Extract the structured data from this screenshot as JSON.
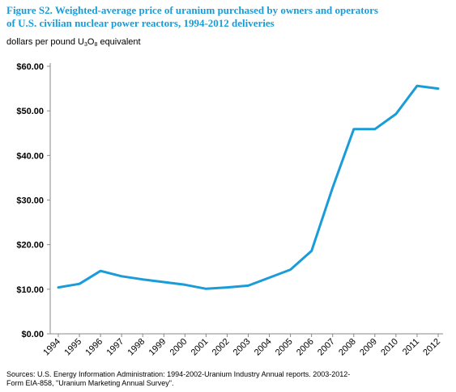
{
  "figure": {
    "title_line1": "Figure S2.  Weighted-average price of uranium purchased by owners and operators",
    "title_line2": "of U.S. civilian nuclear power reactors, 1994-2012 deliveries"
  },
  "colors": {
    "title": "#1a9cd8",
    "line": "#1a9cd8",
    "axis": "#888888"
  },
  "chart_data": {
    "type": "line",
    "ylabel_prefix": "dollars per pound U",
    "ylabel_sub1": "3",
    "ylabel_mid": "O",
    "ylabel_sub2": "8",
    "ylabel_suffix": " equivalent",
    "categories": [
      "1994",
      "1995",
      "1996",
      "1997",
      "1998",
      "1999",
      "2000",
      "2001",
      "2002",
      "2003",
      "2004",
      "2005",
      "2006",
      "2007",
      "2008",
      "2009",
      "2010",
      "2011",
      "2012"
    ],
    "yticks": [
      "$0.00",
      "$10.00",
      "$20.00",
      "$30.00",
      "$40.00",
      "$50.00",
      "$60.00"
    ],
    "ylim": [
      0,
      60
    ],
    "grid": false,
    "series": [
      {
        "values": [
          10.4,
          11.2,
          14.1,
          12.9,
          12.2,
          11.6,
          11.0,
          10.1,
          10.4,
          10.8,
          12.6,
          14.4,
          18.6,
          32.8,
          45.9,
          45.9,
          49.3,
          55.6,
          55.0
        ]
      }
    ]
  },
  "source": {
    "line1": "Sources: U.S. Energy Information Administration: 1994-2002-Uranium Industry Annual reports. 2003-2012-",
    "line2": "Form EIA-858, \"Uranium Marketing Annual Survey\"."
  }
}
